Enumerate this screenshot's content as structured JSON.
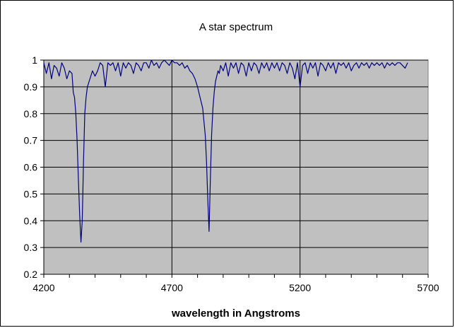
{
  "chart_data": {
    "type": "line",
    "title": "A star spectrum",
    "xlabel": "wavelength in Angstroms",
    "ylabel": "",
    "xlim": [
      4200,
      5700
    ],
    "ylim": [
      0.2,
      1
    ],
    "x_ticks": [
      4200,
      4700,
      5200,
      5700
    ],
    "y_ticks": [
      0.2,
      0.3,
      0.4,
      0.5,
      0.6,
      0.7,
      0.8,
      0.9,
      1
    ],
    "x_tick_labels": [
      "4200",
      "4700",
      "5200",
      "5700"
    ],
    "y_tick_labels": [
      "0.2",
      "0.3",
      "0.4",
      "0.5",
      "0.6",
      "0.7",
      "0.8",
      "0.9",
      "1"
    ],
    "grid": "horizontal and vertical major gridlines",
    "legend": "none",
    "colors": {
      "plot_background": "#c0c0c0",
      "line": "#000080",
      "grid": "#000000"
    },
    "series": [
      {
        "x": [
          4200,
          4210,
          4220,
          4230,
          4240,
          4250,
          4260,
          4270,
          4280,
          4290,
          4300,
          4310,
          4315,
          4320,
          4325,
          4330,
          4335,
          4340,
          4345,
          4350,
          4355,
          4360,
          4365,
          4370,
          4380,
          4390,
          4400,
          4410,
          4420,
          4430,
          4440,
          4450,
          4460,
          4470,
          4480,
          4490,
          4500,
          4510,
          4520,
          4530,
          4540,
          4550,
          4560,
          4570,
          4580,
          4590,
          4600,
          4610,
          4620,
          4630,
          4640,
          4650,
          4660,
          4670,
          4680,
          4690,
          4700,
          4710,
          4720,
          4730,
          4740,
          4750,
          4760,
          4770,
          4780,
          4790,
          4800,
          4810,
          4820,
          4830,
          4835,
          4840,
          4845,
          4850,
          4855,
          4860,
          4865,
          4870,
          4875,
          4880,
          4885,
          4890,
          4900,
          4910,
          4920,
          4930,
          4940,
          4950,
          4960,
          4970,
          4980,
          4990,
          5000,
          5010,
          5020,
          5030,
          5040,
          5050,
          5060,
          5070,
          5080,
          5090,
          5100,
          5110,
          5120,
          5130,
          5140,
          5150,
          5160,
          5170,
          5180,
          5190,
          5200,
          5210,
          5220,
          5230,
          5240,
          5250,
          5260,
          5270,
          5280,
          5290,
          5300,
          5310,
          5320,
          5330,
          5340,
          5350,
          5360,
          5370,
          5380,
          5390,
          5400,
          5410,
          5420,
          5430,
          5440,
          5450,
          5460,
          5470,
          5480,
          5490,
          5500,
          5510,
          5520,
          5530,
          5540,
          5550,
          5560,
          5570,
          5580,
          5590,
          5600,
          5610,
          5620
        ],
        "values": [
          0.99,
          0.95,
          0.99,
          0.93,
          0.98,
          0.97,
          0.94,
          0.99,
          0.97,
          0.93,
          0.96,
          0.95,
          0.88,
          0.86,
          0.8,
          0.7,
          0.55,
          0.42,
          0.32,
          0.4,
          0.62,
          0.8,
          0.86,
          0.9,
          0.93,
          0.96,
          0.94,
          0.96,
          0.99,
          0.98,
          0.9,
          0.99,
          0.98,
          0.99,
          0.96,
          0.99,
          0.94,
          0.99,
          0.97,
          0.99,
          0.98,
          0.95,
          0.99,
          0.98,
          0.96,
          0.99,
          0.99,
          0.97,
          1.0,
          0.98,
          0.99,
          0.97,
          0.99,
          1.0,
          0.99,
          0.98,
          1.0,
          0.99,
          0.99,
          0.98,
          0.99,
          0.97,
          0.98,
          0.96,
          0.95,
          0.93,
          0.9,
          0.86,
          0.82,
          0.72,
          0.62,
          0.48,
          0.36,
          0.55,
          0.72,
          0.82,
          0.88,
          0.92,
          0.94,
          0.96,
          0.95,
          0.98,
          0.96,
          0.99,
          0.94,
          0.99,
          0.97,
          0.99,
          0.95,
          0.99,
          0.98,
          0.94,
          0.99,
          0.96,
          0.99,
          0.98,
          0.95,
          0.99,
          0.97,
          0.99,
          0.96,
          0.99,
          0.97,
          0.99,
          0.96,
          0.99,
          0.98,
          0.95,
          0.99,
          0.97,
          0.93,
          0.99,
          0.9,
          0.98,
          0.99,
          0.95,
          0.99,
          0.97,
          0.99,
          0.94,
          0.99,
          0.98,
          0.96,
          0.99,
          0.97,
          0.99,
          0.95,
          0.99,
          0.98,
          0.99,
          0.97,
          0.99,
          0.96,
          0.98,
          0.99,
          0.97,
          0.99,
          0.98,
          0.99,
          0.97,
          0.99,
          0.98,
          0.99,
          0.98,
          0.99,
          0.97,
          0.99,
          0.98,
          0.99,
          0.98,
          0.99,
          0.99,
          0.98,
          0.97,
          0.99
        ]
      }
    ]
  }
}
